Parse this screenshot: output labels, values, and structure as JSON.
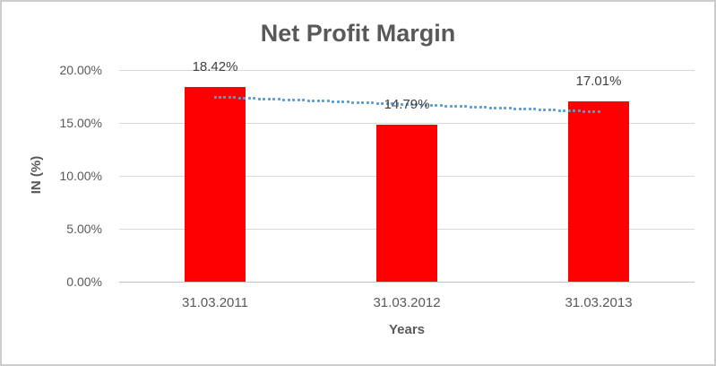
{
  "chart_data": {
    "type": "bar",
    "title": "Net Profit Margin",
    "xlabel": "Years",
    "ylabel": "IN (%)",
    "categories": [
      "31.03.2011",
      "31.03.2012",
      "31.03.2013"
    ],
    "series": [
      {
        "name": "Net Profit Margin",
        "values": [
          18.42,
          14.79,
          17.01
        ]
      }
    ],
    "data_labels": [
      "18.42%",
      "14.79%",
      "17.01%"
    ],
    "ylim": [
      0,
      20
    ],
    "ytick_step": 5,
    "ytick_labels": [
      "0.00%",
      "5.00%",
      "10.00%",
      "15.00%",
      "20.00%"
    ],
    "grid": true,
    "legend": "none",
    "trendline": {
      "type": "linear",
      "style": "dotted",
      "endpoint_values": [
        17.45,
        16.04
      ]
    },
    "colors": {
      "bar": "#ff0000",
      "trendline": "#5b9bd5",
      "gridline": "#d9d9d9",
      "axis_line": "#c3c3c3",
      "text": "#595959",
      "data_label": "#404040",
      "frame_border": "#cdcdcd",
      "background": "#ffffff"
    }
  }
}
